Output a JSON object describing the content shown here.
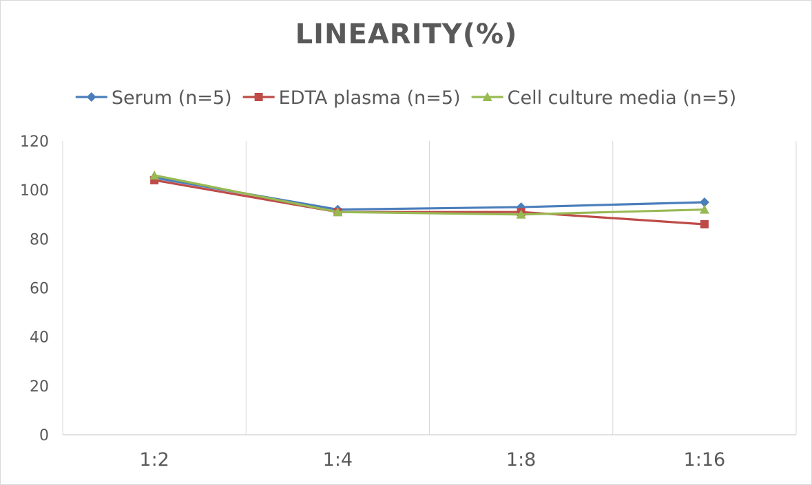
{
  "chart_data": {
    "type": "line",
    "title": "LINEARITY(%)",
    "xlabel": "",
    "ylabel": "",
    "categories": [
      "1:2",
      "1:4",
      "1:8",
      "1:16"
    ],
    "ylim": [
      0,
      120
    ],
    "yticks": [
      0,
      20,
      40,
      60,
      80,
      100,
      120
    ],
    "grid": "vertical",
    "legend_position": "top",
    "series": [
      {
        "name": "Serum (n=5)",
        "color": "#4a7ebb",
        "marker": "diamond",
        "values": [
          105,
          92,
          93,
          95
        ]
      },
      {
        "name": "EDTA plasma (n=5)",
        "color": "#be4b48",
        "marker": "square",
        "values": [
          104,
          91,
          91,
          86
        ]
      },
      {
        "name": "Cell culture media (n=5)",
        "color": "#98b954",
        "marker": "triangle",
        "values": [
          106,
          91,
          90,
          92
        ]
      }
    ]
  }
}
